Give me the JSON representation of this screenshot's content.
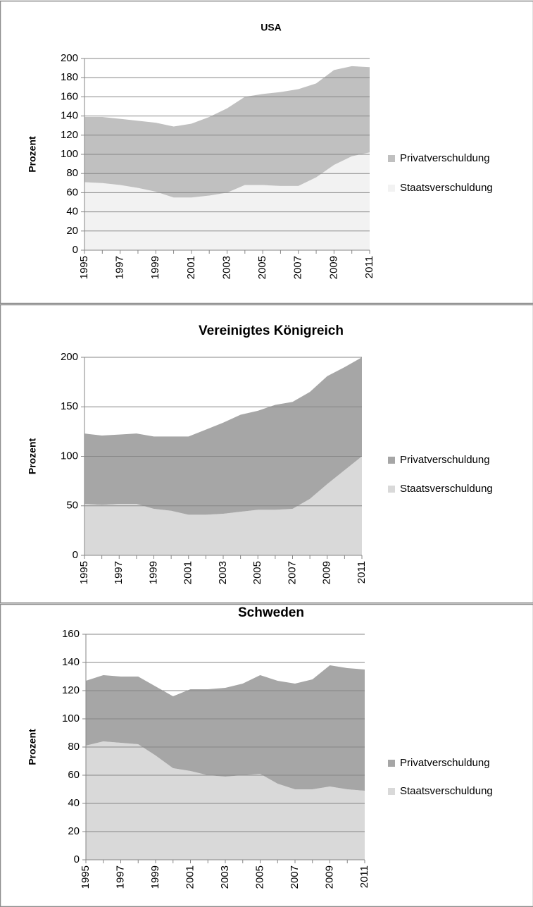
{
  "chart_data": [
    {
      "type": "area",
      "stacked": true,
      "title": "USA",
      "y_label": "Prozent",
      "categories": [
        "1995",
        null,
        "1997",
        null,
        "1999",
        null,
        "2001",
        null,
        "2003",
        null,
        "2005",
        null,
        "2007",
        null,
        "2009",
        null,
        "2011"
      ],
      "series": [
        {
          "name": "Staatsverschuldung",
          "color": "#f2f2f2",
          "values": [
            71,
            70,
            68,
            65,
            61,
            55,
            55,
            57,
            60,
            68,
            68,
            67,
            67,
            76,
            89,
            98,
            102
          ]
        },
        {
          "name": "Privatverschuldung",
          "color": "#c0c0c0",
          "values": [
            68,
            69,
            69,
            70,
            72,
            74,
            77,
            82,
            88,
            92,
            95,
            98,
            101,
            98,
            99,
            94,
            89
          ]
        }
      ],
      "ylim": [
        0,
        200
      ],
      "yticks": [
        0,
        20,
        40,
        60,
        80,
        100,
        120,
        140,
        160,
        180,
        200
      ],
      "grid": true,
      "legend": "right"
    },
    {
      "type": "area",
      "stacked": true,
      "title": "Vereinigtes Königreich",
      "y_label": "Prozent",
      "categories": [
        "1995",
        null,
        "1997",
        null,
        "1999",
        null,
        "2001",
        null,
        "2003",
        null,
        "2005",
        null,
        "2007",
        null,
        "2009",
        null,
        "2011"
      ],
      "series": [
        {
          "name": "Staatsverschuldung",
          "color": "#d9d9d9",
          "values": [
            52,
            51,
            52,
            52,
            47,
            45,
            41,
            41,
            42,
            44,
            46,
            46,
            47,
            57,
            72,
            86,
            100
          ]
        },
        {
          "name": "Privatverschuldung",
          "color": "#a6a6a6",
          "values": [
            71,
            70,
            70,
            71,
            73,
            75,
            79,
            86,
            92,
            98,
            100,
            106,
            108,
            108,
            109,
            104,
            100
          ]
        }
      ],
      "ylim": [
        0,
        200
      ],
      "yticks": [
        0,
        50,
        100,
        150,
        200
      ],
      "grid": true,
      "legend": "right"
    },
    {
      "type": "area",
      "stacked": true,
      "title": "Schweden",
      "y_label": "Prozent",
      "categories": [
        "1995",
        null,
        "1997",
        null,
        "1999",
        null,
        "2001",
        null,
        "2003",
        null,
        "2005",
        null,
        "2007",
        null,
        "2009",
        null,
        "2011"
      ],
      "series": [
        {
          "name": "Staatsverschuldung",
          "color": "#d9d9d9",
          "values": [
            81,
            84,
            83,
            82,
            74,
            65,
            63,
            60,
            59,
            60,
            61,
            54,
            50,
            50,
            52,
            50,
            49
          ]
        },
        {
          "name": "Privatverschuldung",
          "color": "#a6a6a6",
          "values": [
            46,
            47,
            47,
            48,
            49,
            51,
            58,
            61,
            63,
            65,
            70,
            73,
            75,
            78,
            86,
            86,
            86
          ]
        }
      ],
      "ylim": [
        0,
        160
      ],
      "yticks": [
        0,
        20,
        40,
        60,
        80,
        100,
        120,
        140,
        160
      ],
      "grid": true,
      "legend": "right"
    }
  ]
}
